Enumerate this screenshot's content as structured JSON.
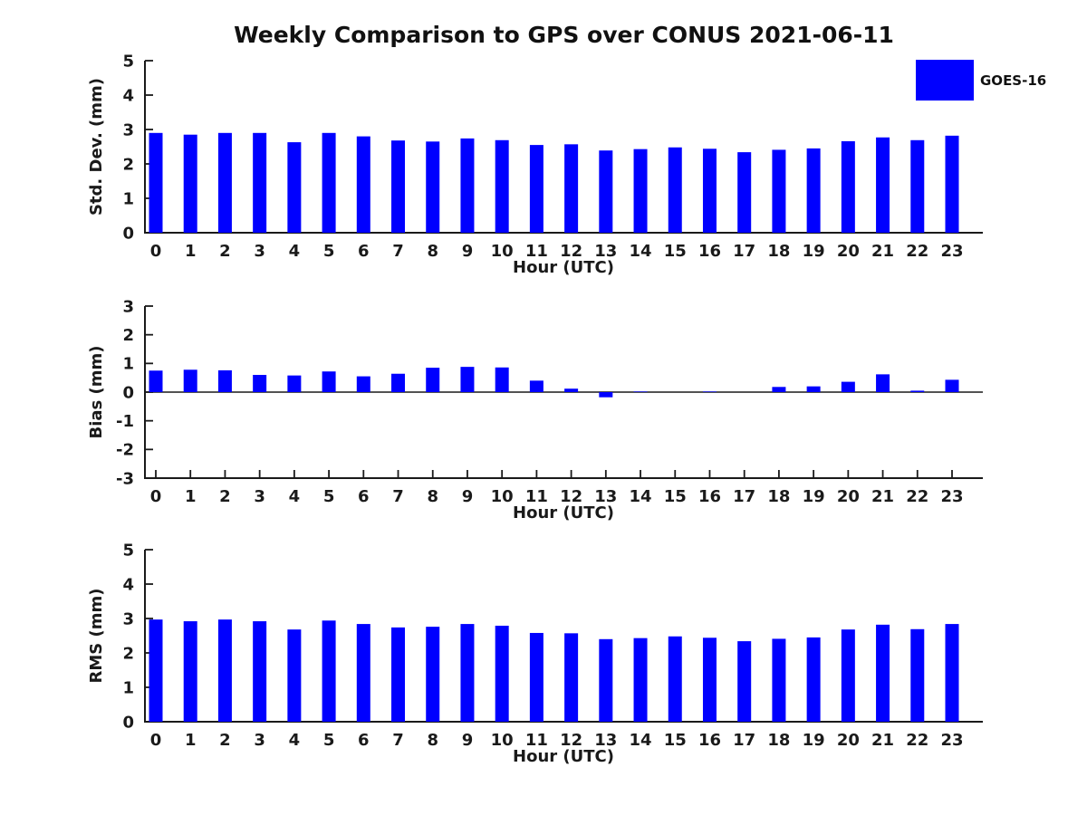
{
  "figure": {
    "title": "Weekly Comparison to GPS over CONUS 2021-06-11",
    "background_color": "#ffffff",
    "text_color": "#1a1a1a",
    "axis_color": "#1a1a1a",
    "bar_color": "#0000ff"
  },
  "legend": {
    "label": "GOES-16",
    "swatch_color": "#0000ff",
    "position": "outside-top-right"
  },
  "chart_data": [
    {
      "type": "bar",
      "title": "",
      "ylabel": "Std. Dev. (mm)",
      "xlabel": "Hour (UTC)",
      "ylim": [
        0,
        5
      ],
      "yticks": [
        0,
        1,
        2,
        3,
        4,
        5
      ],
      "grid": false,
      "legend_entry": "GOES-16",
      "categories": [
        "0",
        "1",
        "2",
        "3",
        "4",
        "5",
        "6",
        "7",
        "8",
        "9",
        "10",
        "11",
        "12",
        "13",
        "14",
        "15",
        "16",
        "17",
        "18",
        "19",
        "20",
        "21",
        "22",
        "23"
      ],
      "series": [
        {
          "name": "GOES-16",
          "values": [
            2.9,
            2.85,
            2.9,
            2.9,
            2.63,
            2.9,
            2.8,
            2.68,
            2.65,
            2.74,
            2.69,
            2.55,
            2.57,
            2.39,
            2.43,
            2.48,
            2.44,
            2.34,
            2.41,
            2.45,
            2.66,
            2.77,
            2.69,
            2.82
          ]
        }
      ]
    },
    {
      "type": "bar",
      "title": "",
      "ylabel": "Bias (mm)",
      "xlabel": "Hour (UTC)",
      "ylim": [
        -3,
        3
      ],
      "yticks": [
        -3,
        -2,
        -1,
        0,
        1,
        2,
        3
      ],
      "grid": false,
      "legend_entry": "GOES-16",
      "categories": [
        "0",
        "1",
        "2",
        "3",
        "4",
        "5",
        "6",
        "7",
        "8",
        "9",
        "10",
        "11",
        "12",
        "13",
        "14",
        "15",
        "16",
        "17",
        "18",
        "19",
        "20",
        "21",
        "22",
        "23"
      ],
      "series": [
        {
          "name": "GOES-16",
          "values": [
            0.75,
            0.78,
            0.76,
            0.6,
            0.58,
            0.72,
            0.55,
            0.64,
            0.85,
            0.88,
            0.86,
            0.4,
            0.12,
            -0.18,
            0.02,
            0.0,
            0.02,
            0.0,
            0.18,
            0.2,
            0.36,
            0.62,
            0.05,
            0.43
          ]
        }
      ]
    },
    {
      "type": "bar",
      "title": "",
      "ylabel": "RMS (mm)",
      "xlabel": "Hour (UTC)",
      "ylim": [
        0,
        5
      ],
      "yticks": [
        0,
        1,
        2,
        3,
        4,
        5
      ],
      "grid": false,
      "legend_entry": "GOES-16",
      "categories": [
        "0",
        "1",
        "2",
        "3",
        "4",
        "5",
        "6",
        "7",
        "8",
        "9",
        "10",
        "11",
        "12",
        "13",
        "14",
        "15",
        "16",
        "17",
        "18",
        "19",
        "20",
        "21",
        "22",
        "23"
      ],
      "series": [
        {
          "name": "GOES-16",
          "values": [
            2.97,
            2.92,
            2.97,
            2.92,
            2.68,
            2.94,
            2.84,
            2.74,
            2.76,
            2.84,
            2.79,
            2.58,
            2.57,
            2.4,
            2.43,
            2.48,
            2.44,
            2.34,
            2.41,
            2.45,
            2.68,
            2.82,
            2.69,
            2.84
          ]
        }
      ]
    }
  ]
}
